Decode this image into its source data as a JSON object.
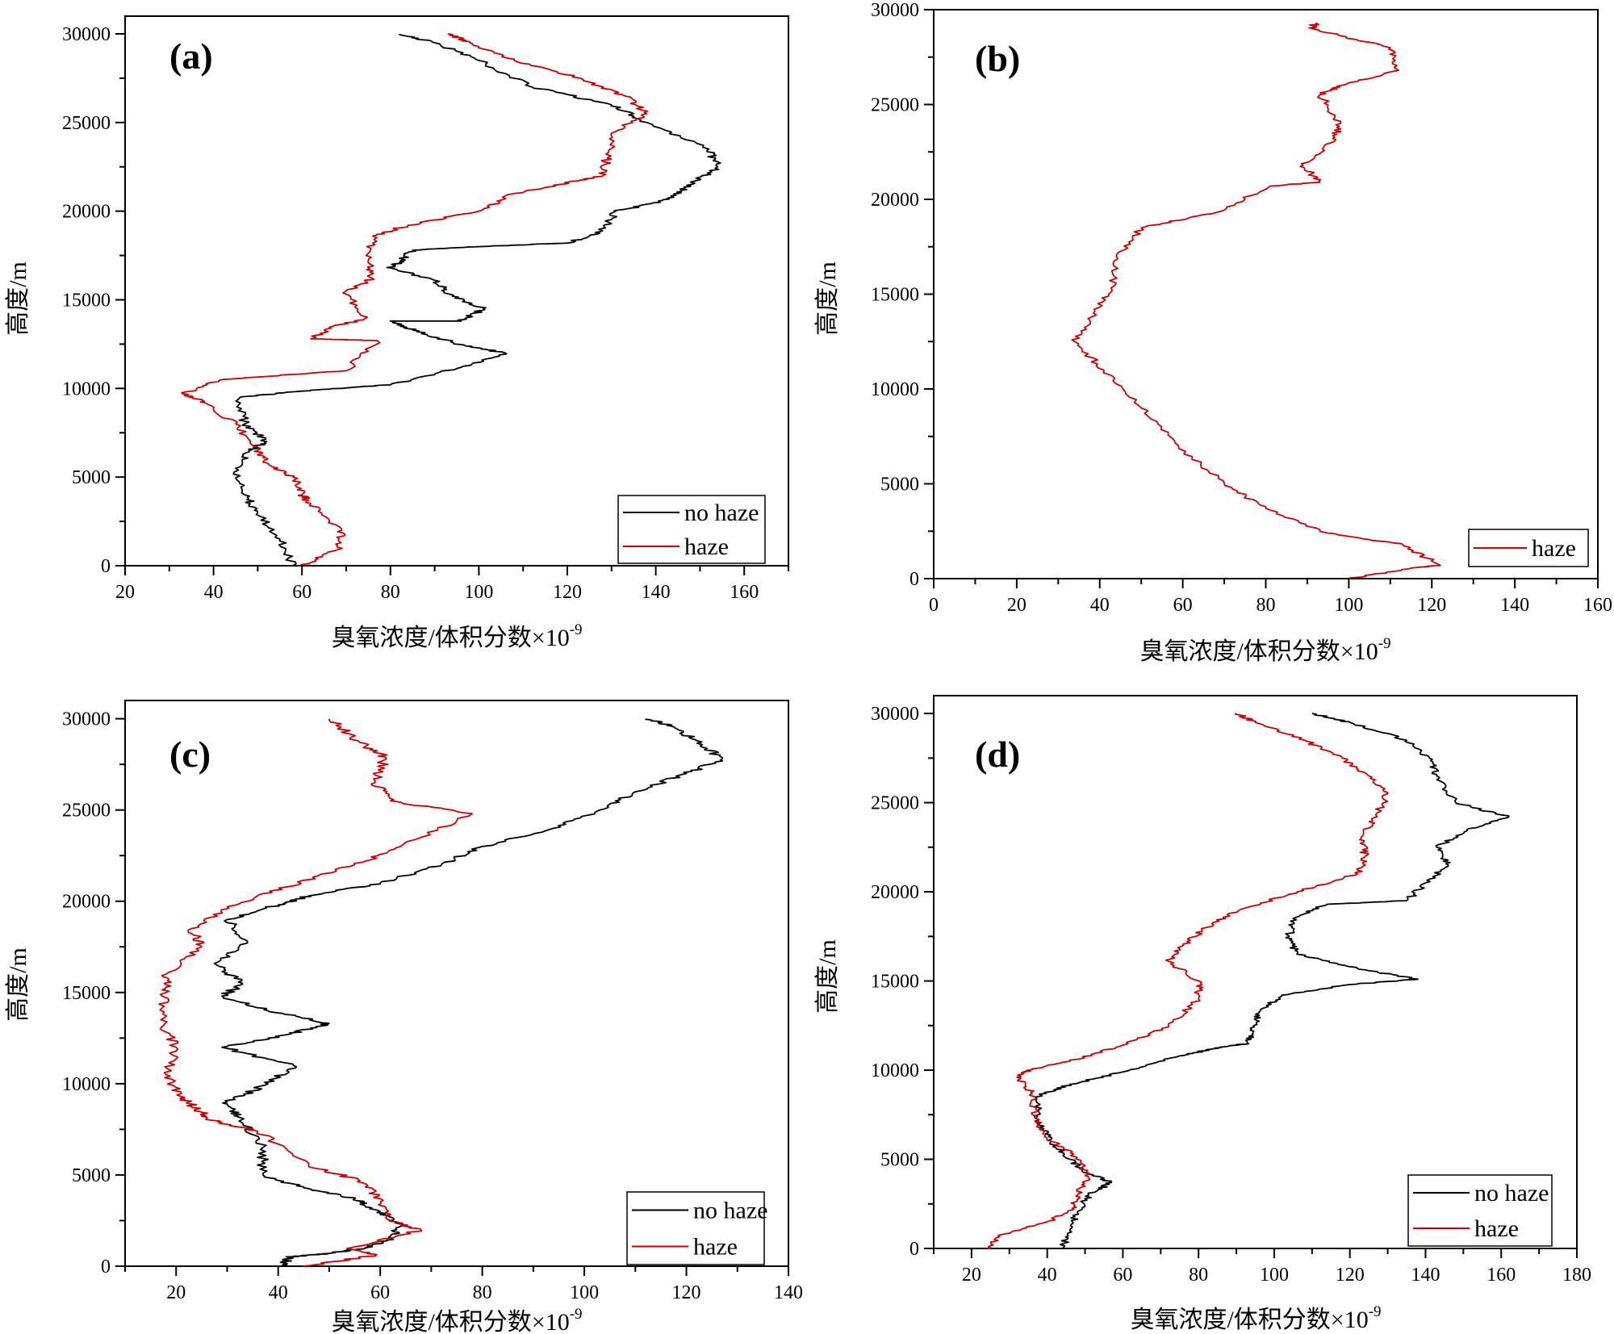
{
  "chart_data": [
    {
      "type": "line",
      "panel_label": "(a)",
      "xlabel": "臭氧浓度/体积分数×10",
      "xlabel_sup": "-9",
      "ylabel": "高度/m",
      "xlim": [
        20,
        170
      ],
      "ylim": [
        0,
        31000
      ],
      "xticks": [
        20,
        40,
        60,
        80,
        100,
        120,
        140,
        160
      ],
      "yticks": [
        0,
        5000,
        10000,
        15000,
        20000,
        25000,
        30000
      ],
      "legend_position": "bottom-right",
      "series": [
        {
          "name": "no haze",
          "color": "#000000",
          "points": [
            [
              58,
              0
            ],
            [
              55,
              1500
            ],
            [
              50,
              3000
            ],
            [
              47,
              4000
            ],
            [
              45,
              5500
            ],
            [
              48,
              6500
            ],
            [
              52,
              7000
            ],
            [
              47,
              8000
            ],
            [
              46,
              9500
            ],
            [
              62,
              9900
            ],
            [
              80,
              10200
            ],
            [
              96,
              11200
            ],
            [
              106,
              12000
            ],
            [
              97,
              12400
            ],
            [
              86,
              13200
            ],
            [
              80,
              13800
            ],
            [
              96,
              13800
            ],
            [
              101,
              14500
            ],
            [
              94,
              15200
            ],
            [
              90,
              16100
            ],
            [
              80,
              16800
            ],
            [
              82,
              17100
            ],
            [
              85,
              17800
            ],
            [
              100,
              18000
            ],
            [
              120,
              18200
            ],
            [
              128,
              18900
            ],
            [
              131,
              20000
            ],
            [
              141,
              20500
            ],
            [
              145,
              21000
            ],
            [
              148,
              21500
            ],
            [
              154,
              22500
            ],
            [
              152,
              23500
            ],
            [
              138,
              25000
            ],
            [
              130,
              26000
            ],
            [
              112,
              27000
            ],
            [
              100,
              28500
            ],
            [
              90,
              29500
            ],
            [
              82,
              30000
            ]
          ]
        },
        {
          "name": "haze",
          "color": "#cc0000",
          "points": [
            [
              60,
              0
            ],
            [
              68,
              900
            ],
            [
              69,
              2000
            ],
            [
              62,
              3500
            ],
            [
              60,
              4000
            ],
            [
              58,
              5000
            ],
            [
              52,
              5800
            ],
            [
              50,
              6500
            ],
            [
              45,
              8000
            ],
            [
              38,
              9200
            ],
            [
              33,
              9700
            ],
            [
              42,
              10500
            ],
            [
              70,
              11000
            ],
            [
              77,
              12700
            ],
            [
              62,
              12800
            ],
            [
              67,
              13500
            ],
            [
              74,
              13900
            ],
            [
              70,
              15500
            ],
            [
              76,
              16200
            ],
            [
              75,
              17200
            ],
            [
              76,
              18600
            ],
            [
              84,
              19200
            ],
            [
              100,
              20000
            ],
            [
              108,
              21000
            ],
            [
              118,
              21500
            ],
            [
              128,
              22000
            ],
            [
              129,
              23000
            ],
            [
              131,
              24500
            ],
            [
              138,
              25500
            ],
            [
              133,
              26500
            ],
            [
              123,
              27500
            ],
            [
              108,
              28500
            ],
            [
              98,
              29500
            ],
            [
              93,
              30000
            ]
          ]
        }
      ]
    },
    {
      "type": "line",
      "panel_label": "(b)",
      "xlabel": "臭氧浓度/体积分数×10",
      "xlabel_sup": "-9",
      "ylabel": "高度/m",
      "xlim": [
        0,
        160
      ],
      "ylim": [
        0,
        30000
      ],
      "xticks": [
        0,
        20,
        40,
        60,
        80,
        100,
        120,
        140,
        160
      ],
      "yticks": [
        0,
        5000,
        10000,
        15000,
        20000,
        25000,
        30000
      ],
      "legend_position": "bottom-right",
      "series": [
        {
          "name": "haze",
          "color": "#cc0000",
          "points": [
            [
              100,
              0
            ],
            [
              117,
              600
            ],
            [
              122,
              700
            ],
            [
              113,
              1800
            ],
            [
              95,
              2400
            ],
            [
              80,
              3700
            ],
            [
              70,
              5000
            ],
            [
              59,
              7000
            ],
            [
              50,
              9000
            ],
            [
              41,
              11000
            ],
            [
              34,
              12500
            ],
            [
              38,
              13800
            ],
            [
              43,
              15200
            ],
            [
              44,
              17000
            ],
            [
              50,
              18500
            ],
            [
              68,
              19300
            ],
            [
              81,
              20700
            ],
            [
              93,
              20900
            ],
            [
              89,
              21800
            ],
            [
              96,
              23000
            ],
            [
              98,
              24000
            ],
            [
              93,
              25500
            ],
            [
              98,
              26000
            ],
            [
              112,
              26800
            ],
            [
              110,
              28000
            ],
            [
              91,
              29000
            ],
            [
              92,
              29300
            ]
          ]
        }
      ]
    },
    {
      "type": "line",
      "panel_label": "(c)",
      "xlabel": "臭氧浓度/体积分数×10",
      "xlabel_sup": "-9",
      "ylabel": "高度/m",
      "xlim": [
        10,
        140
      ],
      "ylim": [
        0,
        31000
      ],
      "xticks": [
        20,
        40,
        60,
        80,
        100,
        120,
        140
      ],
      "yticks": [
        0,
        5000,
        10000,
        15000,
        20000,
        25000,
        30000
      ],
      "legend_position": "bottom-right",
      "series": [
        {
          "name": "no haze",
          "color": "#000000",
          "points": [
            [
              41,
              0
            ],
            [
              42,
              500
            ],
            [
              50,
              700
            ],
            [
              57,
              1000
            ],
            [
              62,
              1500
            ],
            [
              64,
              2200
            ],
            [
              60,
              3000
            ],
            [
              55,
              3700
            ],
            [
              45,
              4300
            ],
            [
              37,
              5000
            ],
            [
              37,
              6500
            ],
            [
              32,
              8200
            ],
            [
              30,
              9000
            ],
            [
              38,
              10000
            ],
            [
              43,
              11000
            ],
            [
              29,
              12000
            ],
            [
              42,
              12700
            ],
            [
              50,
              13300
            ],
            [
              38,
              14000
            ],
            [
              29,
              14800
            ],
            [
              33,
              15500
            ],
            [
              28,
              16500
            ],
            [
              34,
              17800
            ],
            [
              30,
              19000
            ],
            [
              40,
              19800
            ],
            [
              46,
              20300
            ],
            [
              60,
              21000
            ],
            [
              72,
              22000
            ],
            [
              80,
              23000
            ],
            [
              94,
              24000
            ],
            [
              103,
              25000
            ],
            [
              110,
              26000
            ],
            [
              120,
              27000
            ],
            [
              127,
              27800
            ],
            [
              122,
              28800
            ],
            [
              117,
              29600
            ],
            [
              112,
              30000
            ]
          ]
        },
        {
          "name": "haze",
          "color": "#cc0000",
          "points": [
            [
              45,
              0
            ],
            [
              59,
              600
            ],
            [
              54,
              1000
            ],
            [
              68,
              2000
            ],
            [
              62,
              2500
            ],
            [
              60,
              3700
            ],
            [
              56,
              4700
            ],
            [
              46,
              5500
            ],
            [
              36,
              7400
            ],
            [
              27,
              8000
            ],
            [
              24,
              8600
            ],
            [
              21,
              9300
            ],
            [
              18,
              10500
            ],
            [
              20,
              12000
            ],
            [
              17,
              13500
            ],
            [
              18,
              15000
            ],
            [
              18,
              16000
            ],
            [
              25,
              17500
            ],
            [
              23,
              18500
            ],
            [
              30,
              19700
            ],
            [
              42,
              20800
            ],
            [
              55,
              22000
            ],
            [
              64,
              23000
            ],
            [
              78,
              24800
            ],
            [
              62,
              25500
            ],
            [
              59,
              26500
            ],
            [
              61,
              27900
            ],
            [
              56,
              28700
            ],
            [
              50,
              30000
            ]
          ]
        }
      ]
    },
    {
      "type": "line",
      "panel_label": "(d)",
      "xlabel": "臭氧浓度/体积分数×10",
      "xlabel_sup": "-9",
      "ylabel": "高度/m",
      "xlim": [
        10,
        180
      ],
      "ylim": [
        0,
        31000
      ],
      "xticks": [
        20,
        40,
        60,
        80,
        100,
        120,
        140,
        160,
        180
      ],
      "yticks": [
        0,
        5000,
        10000,
        15000,
        20000,
        25000,
        30000
      ],
      "legend_position": "bottom-right",
      "series": [
        {
          "name": "no haze",
          "color": "#000000",
          "points": [
            [
              44,
              0
            ],
            [
              46,
              1000
            ],
            [
              48,
              2000
            ],
            [
              51,
              3000
            ],
            [
              57,
              3700
            ],
            [
              51,
              4200
            ],
            [
              46,
              5000
            ],
            [
              41,
              6000
            ],
            [
              38,
              7000
            ],
            [
              37,
              8500
            ],
            [
              46,
              9200
            ],
            [
              60,
              9900
            ],
            [
              75,
              10800
            ],
            [
              84,
              11200
            ],
            [
              93,
              11500
            ],
            [
              94,
              12300
            ],
            [
              96,
              13200
            ],
            [
              102,
              14200
            ],
            [
              120,
              14800
            ],
            [
              138,
              15100
            ],
            [
              122,
              15700
            ],
            [
              106,
              16500
            ],
            [
              104,
              17500
            ],
            [
              105,
              18500
            ],
            [
              114,
              19300
            ],
            [
              135,
              19500
            ],
            [
              140,
              20500
            ],
            [
              146,
              21500
            ],
            [
              143,
              22500
            ],
            [
              151,
              23500
            ],
            [
              162,
              24200
            ],
            [
              148,
              25000
            ],
            [
              143,
              26500
            ],
            [
              141,
              27500
            ],
            [
              135,
              28500
            ],
            [
              120,
              29500
            ],
            [
              110,
              30000
            ]
          ]
        },
        {
          "name": "haze",
          "color": "#cc0000",
          "points": [
            [
              24,
              0
            ],
            [
              27,
              700
            ],
            [
              40,
              1500
            ],
            [
              47,
              2200
            ],
            [
              48,
              3000
            ],
            [
              51,
              4000
            ],
            [
              47,
              5300
            ],
            [
              40,
              6200
            ],
            [
              37,
              7300
            ],
            [
              36,
              8700
            ],
            [
              32,
              9600
            ],
            [
              35,
              10000
            ],
            [
              46,
              10500
            ],
            [
              60,
              11400
            ],
            [
              72,
              12500
            ],
            [
              80,
              14000
            ],
            [
              80,
              15000
            ],
            [
              72,
              16100
            ],
            [
              76,
              17000
            ],
            [
              82,
              18000
            ],
            [
              91,
              19000
            ],
            [
              106,
              20000
            ],
            [
              122,
              21000
            ],
            [
              124,
              22000
            ],
            [
              123,
              23000
            ],
            [
              126,
              24000
            ],
            [
              130,
              25500
            ],
            [
              125,
              26500
            ],
            [
              118,
              27500
            ],
            [
              108,
              28500
            ],
            [
              95,
              29500
            ],
            [
              90,
              30000
            ]
          ]
        }
      ]
    }
  ]
}
